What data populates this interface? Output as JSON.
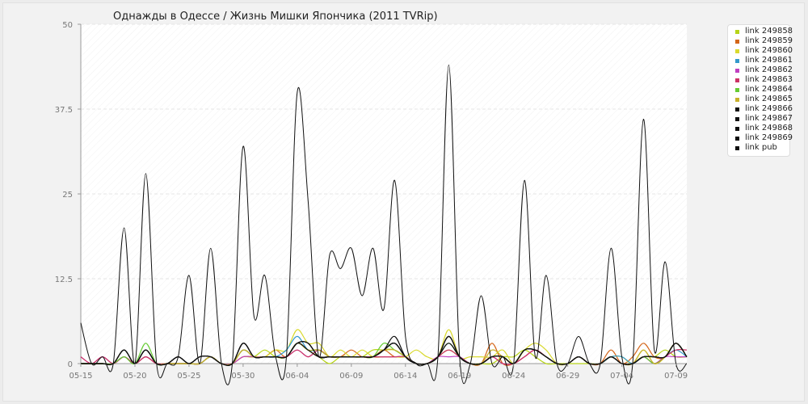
{
  "chart_data": {
    "type": "line",
    "title": "Однажды в Одессе / Жизнь Мишки Япончика (2011 TVRip)",
    "xlabel": "",
    "ylabel": "",
    "ylim": [
      0,
      50
    ],
    "yticks": [
      0,
      12.5,
      25,
      37.5,
      50
    ],
    "ytick_labels": [
      "0",
      "12.5",
      "25",
      "37.5",
      "50"
    ],
    "xlim": [
      0,
      56
    ],
    "xticks": [
      0,
      5,
      10,
      15,
      20,
      25,
      30,
      35,
      40,
      45,
      50,
      55
    ],
    "xtick_labels": [
      "05-15",
      "05-20",
      "05-25",
      "05-30",
      "06-04",
      "06-09",
      "06-14",
      "06-19",
      "06-24",
      "06-29",
      "07-04",
      "07-09"
    ],
    "x": [
      0,
      1,
      2,
      3,
      4,
      5,
      6,
      7,
      8,
      9,
      10,
      11,
      12,
      13,
      14,
      15,
      16,
      17,
      18,
      19,
      20,
      21,
      22,
      23,
      24,
      25,
      26,
      27,
      28,
      29,
      30,
      31,
      32,
      33,
      34,
      35,
      36,
      37,
      38,
      39,
      40,
      41,
      42,
      43,
      44,
      45,
      46,
      47,
      48,
      49,
      50,
      51,
      52,
      53,
      54,
      55,
      56
    ],
    "grid": true,
    "legend_position": "right",
    "series": [
      {
        "name": "link 249858",
        "color": "#b7d418",
        "values": [
          0,
          0,
          0,
          0,
          1,
          0,
          1,
          0,
          0,
          0,
          0,
          0,
          1,
          0,
          0,
          1,
          1,
          2,
          1,
          1,
          3,
          2,
          1,
          0,
          1,
          1,
          1,
          2,
          2,
          2,
          1,
          0,
          0,
          1,
          2,
          1,
          0,
          0,
          0,
          1,
          1,
          2,
          1,
          0,
          0,
          0,
          0,
          0,
          0,
          1,
          0,
          0,
          1,
          1,
          2,
          1,
          1
        ]
      },
      {
        "name": "link 249859",
        "color": "#d4661a",
        "values": [
          0,
          0,
          0,
          0,
          1,
          0,
          1,
          0,
          0,
          0,
          0,
          0,
          1,
          0,
          0,
          1,
          1,
          1,
          2,
          1,
          3,
          2,
          1,
          1,
          1,
          2,
          1,
          1,
          2,
          1,
          1,
          0,
          0,
          1,
          3,
          1,
          0,
          0,
          3,
          0,
          0,
          1,
          2,
          1,
          0,
          0,
          1,
          0,
          0,
          2,
          0,
          1,
          3,
          1,
          1,
          3,
          1
        ]
      },
      {
        "name": "link 249860",
        "color": "#d9d92e",
        "values": [
          0,
          0,
          0,
          0,
          1,
          0,
          2,
          0,
          0,
          0,
          0,
          0,
          1,
          0,
          0,
          2,
          1,
          1,
          2,
          2,
          5,
          3,
          3,
          1,
          2,
          1,
          2,
          1,
          1,
          1,
          1,
          2,
          1,
          1,
          5,
          1,
          1,
          1,
          1,
          2,
          0,
          2,
          3,
          2,
          0,
          0,
          1,
          0,
          0,
          1,
          1,
          0,
          2,
          0,
          1,
          3,
          1
        ]
      },
      {
        "name": "link 249861",
        "color": "#3399cc",
        "values": [
          0,
          0,
          0,
          0,
          1,
          0,
          2,
          0,
          0,
          0,
          0,
          0,
          1,
          0,
          0,
          2,
          1,
          1,
          1,
          2,
          4,
          2,
          2,
          1,
          1,
          1,
          1,
          1,
          2,
          3,
          1,
          0,
          0,
          1,
          3,
          1,
          0,
          0,
          1,
          1,
          0,
          2,
          2,
          1,
          0,
          0,
          1,
          0,
          0,
          1,
          1,
          0,
          1,
          0,
          1,
          2,
          1
        ]
      },
      {
        "name": "link 249862",
        "color": "#c03fc0",
        "values": [
          1,
          0,
          1,
          0,
          1,
          0,
          1,
          0,
          0,
          0,
          0,
          0,
          1,
          0,
          0,
          1,
          1,
          1,
          1,
          1,
          2,
          1,
          2,
          1,
          1,
          1,
          1,
          1,
          1,
          1,
          1,
          0,
          0,
          1,
          1,
          1,
          0,
          0,
          1,
          0,
          0,
          1,
          2,
          1,
          0,
          0,
          1,
          0,
          0,
          1,
          0,
          0,
          1,
          0,
          1,
          1,
          1
        ]
      },
      {
        "name": "link 249863",
        "color": "#cc3366",
        "values": [
          1,
          0,
          1,
          0,
          1,
          0,
          1,
          0,
          0,
          0,
          0,
          0,
          1,
          0,
          0,
          2,
          1,
          1,
          1,
          1,
          2,
          1,
          2,
          1,
          1,
          1,
          1,
          1,
          1,
          1,
          1,
          0,
          0,
          1,
          2,
          1,
          0,
          0,
          1,
          0,
          0,
          1,
          2,
          1,
          0,
          0,
          1,
          0,
          0,
          1,
          0,
          0,
          1,
          0,
          1,
          2,
          2
        ]
      },
      {
        "name": "link 249864",
        "color": "#66cc33",
        "values": [
          0,
          0,
          0,
          0,
          1,
          0,
          3,
          0,
          0,
          0,
          0,
          0,
          1,
          0,
          0,
          2,
          1,
          1,
          1,
          1,
          3,
          2,
          2,
          1,
          1,
          1,
          1,
          1,
          3,
          2,
          1,
          0,
          0,
          1,
          3,
          1,
          0,
          0,
          1,
          1,
          0,
          2,
          2,
          1,
          0,
          0,
          1,
          0,
          0,
          1,
          0,
          0,
          1,
          0,
          1,
          3,
          1
        ]
      },
      {
        "name": "link 249865",
        "color": "#c8b02a",
        "values": [
          0,
          0,
          0,
          0,
          2,
          0,
          2,
          0,
          0,
          0,
          0,
          0,
          1,
          0,
          0,
          2,
          1,
          1,
          1,
          1,
          3,
          2,
          2,
          1,
          1,
          1,
          1,
          1,
          2,
          2,
          1,
          0,
          0,
          1,
          4,
          1,
          0,
          0,
          2,
          1,
          0,
          2,
          2,
          1,
          0,
          0,
          1,
          0,
          0,
          1,
          0,
          0,
          2,
          0,
          1,
          3,
          1
        ]
      },
      {
        "name": "link 249866",
        "color": "#111111",
        "values": [
          0,
          0,
          0,
          0,
          2,
          0,
          2,
          0,
          0,
          1,
          0,
          1,
          1,
          0,
          0,
          3,
          1,
          1,
          1,
          1,
          3,
          2,
          1,
          1,
          1,
          1,
          1,
          1,
          2,
          3,
          1,
          0,
          0,
          1,
          4,
          1,
          0,
          0,
          1,
          1,
          0,
          2,
          2,
          1,
          0,
          0,
          1,
          0,
          0,
          1,
          0,
          0,
          1,
          1,
          1,
          3,
          1
        ]
      },
      {
        "name": "link 249867",
        "color": "#111111",
        "values": [
          0,
          0,
          0,
          0,
          2,
          0,
          2,
          0,
          0,
          1,
          0,
          1,
          1,
          0,
          0,
          3,
          1,
          1,
          1,
          1,
          3,
          3,
          1,
          1,
          1,
          1,
          1,
          1,
          2,
          3,
          1,
          0,
          0,
          1,
          4,
          1,
          0,
          0,
          1,
          1,
          0,
          2,
          2,
          1,
          0,
          0,
          1,
          0,
          0,
          1,
          0,
          0,
          1,
          1,
          1,
          3,
          1
        ]
      },
      {
        "name": "link 249868",
        "color": "#111111",
        "values": [
          0,
          0,
          0,
          0,
          2,
          0,
          2,
          0,
          0,
          1,
          0,
          1,
          1,
          0,
          0,
          3,
          1,
          1,
          1,
          1,
          3,
          3,
          1,
          1,
          1,
          1,
          1,
          1,
          2,
          3,
          1,
          0,
          0,
          1,
          4,
          1,
          0,
          0,
          1,
          1,
          0,
          2,
          2,
          1,
          0,
          0,
          1,
          0,
          0,
          1,
          0,
          0,
          1,
          1,
          1,
          3,
          1
        ]
      },
      {
        "name": "link 249869",
        "color": "#111111",
        "values": [
          0,
          0,
          0,
          0,
          2,
          0,
          2,
          0,
          0,
          1,
          0,
          1,
          1,
          0,
          0,
          3,
          1,
          1,
          1,
          1,
          3,
          3,
          1,
          1,
          1,
          1,
          1,
          1,
          2,
          4,
          1,
          0,
          0,
          1,
          3,
          1,
          0,
          0,
          1,
          1,
          0,
          2,
          2,
          1,
          0,
          0,
          1,
          0,
          0,
          1,
          0,
          0,
          1,
          1,
          1,
          3,
          1
        ]
      },
      {
        "name": "link pub",
        "color": "#111111",
        "values": [
          6,
          0,
          1,
          0,
          20,
          0,
          28,
          0,
          0,
          1,
          13,
          0,
          17,
          0,
          0,
          32,
          7,
          13,
          1,
          1,
          40,
          24,
          1,
          16,
          14,
          17,
          10,
          17,
          8,
          27,
          4,
          0,
          0,
          1,
          44,
          1,
          0,
          10,
          0,
          1,
          0,
          27,
          1,
          13,
          0,
          0,
          4,
          0,
          0,
          17,
          1,
          0,
          36,
          2,
          15,
          0,
          0
        ]
      }
    ]
  }
}
